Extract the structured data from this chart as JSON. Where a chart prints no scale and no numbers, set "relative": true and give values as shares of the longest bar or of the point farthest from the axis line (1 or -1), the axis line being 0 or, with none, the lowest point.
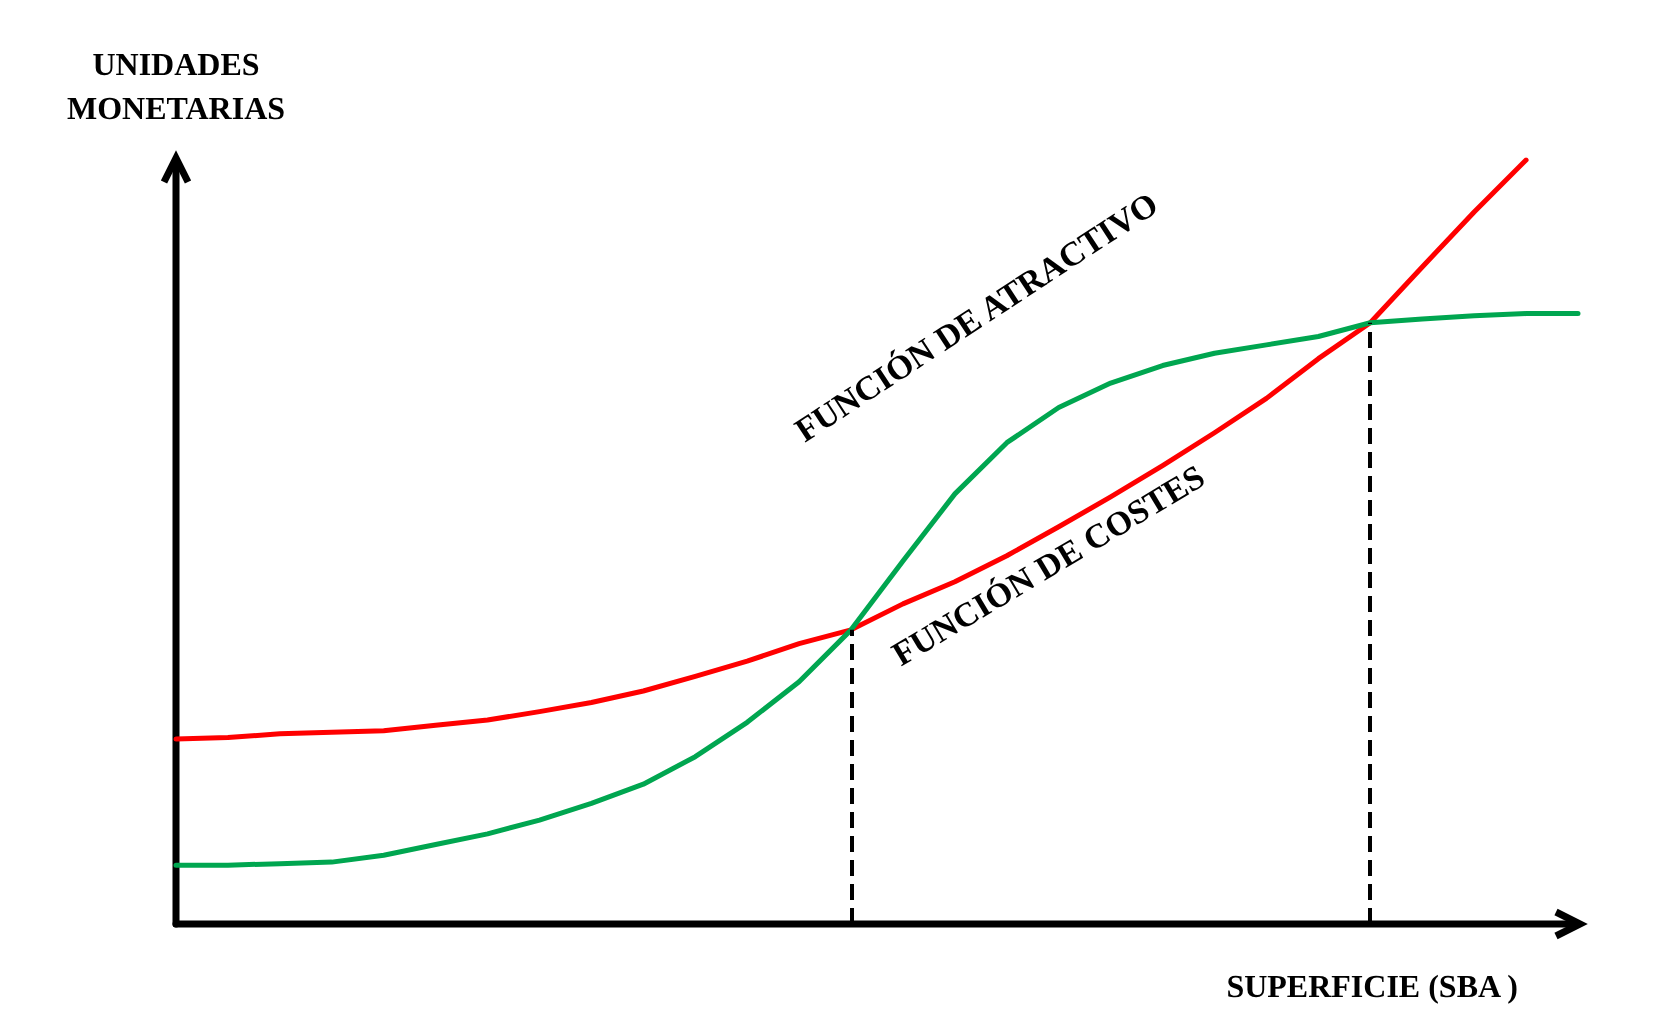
{
  "chart_data": {
    "type": "line",
    "relative": true,
    "ylabel": "UNIDADES\nMONETARIAS",
    "xlabel": "SUPERFICIE (SBA )",
    "annotations": [
      "FUNCIÓN DE ATRACTIVO",
      "FUNCIÓN DE COSTES"
    ],
    "categories": [
      null,
      null,
      null,
      null,
      null,
      null,
      null,
      null,
      null,
      null,
      null,
      null,
      null,
      null,
      null,
      null,
      null,
      null,
      null,
      null,
      null,
      null,
      null,
      null,
      null,
      null,
      null,
      null
    ],
    "series": [
      {
        "color": "#ff0000",
        "values": [
          0.242,
          0.244,
          0.249,
          0.251,
          0.253,
          0.26,
          0.267,
          0.278,
          0.29,
          0.305,
          0.324,
          0.344,
          0.367,
          0.385,
          0.419,
          0.448,
          0.482,
          0.52,
          0.559,
          0.6,
          0.643,
          0.688,
          0.74,
          0.787,
          0.86,
          0.932,
          1,
          null
        ]
      },
      {
        "color": "#00a650",
        "values": [
          0.077,
          0.077,
          0.079,
          0.081,
          0.09,
          0.104,
          0.118,
          0.136,
          0.158,
          0.183,
          0.219,
          0.264,
          0.317,
          0.385,
          0.475,
          0.563,
          0.63,
          0.676,
          0.708,
          0.731,
          0.747,
          0.758,
          0.769,
          0.787,
          0.792,
          0.796,
          0.799,
          0.799
        ]
      }
    ],
    "grid": false,
    "marker": "none",
    "line_style": "solid"
  }
}
